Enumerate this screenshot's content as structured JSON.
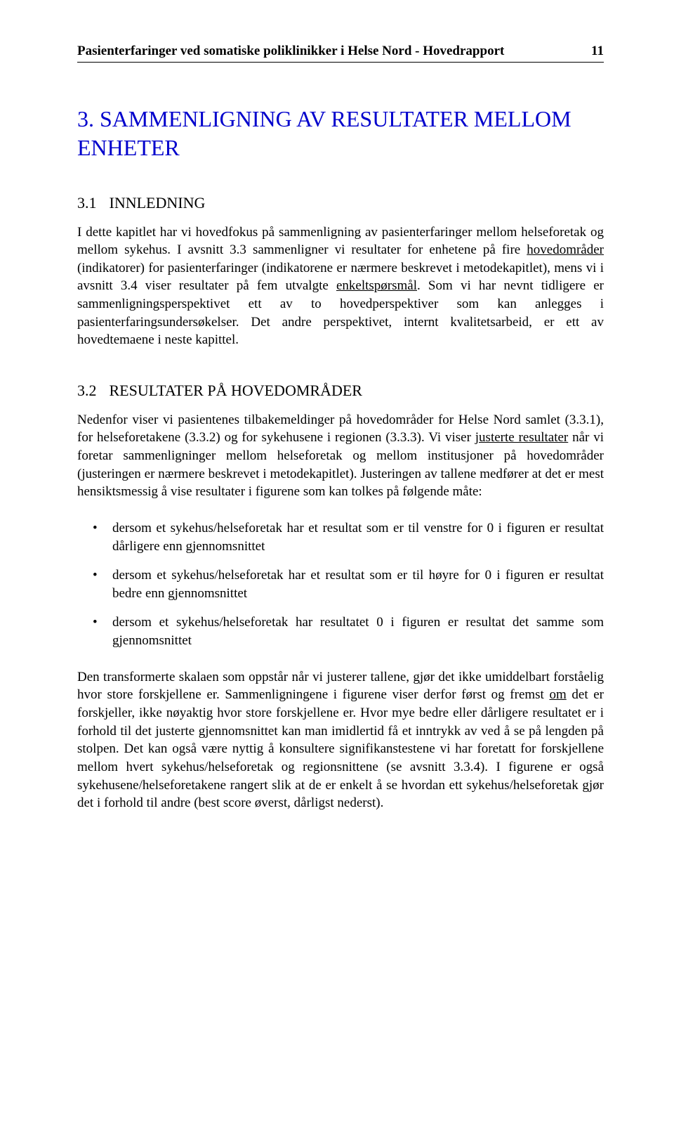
{
  "header": {
    "title": "Pasienterfaringer ved somatiske poliklinikker i Helse Nord - Hovedrapport",
    "page_number": "11"
  },
  "title": "3.   SAMMENLIGNING AV RESULTATER MELLOM ENHETER",
  "section31": {
    "heading_num": "3.1",
    "heading_text": "INNLEDNING",
    "p1_a": "I dette kapitlet har vi hovedfokus på sammenligning av pasienterfaringer mellom helseforetak og mellom sykehus. I avsnitt 3.3 sammenligner vi resultater for enhetene på fire ",
    "p1_u1": "hovedområder",
    "p1_b": " (indikatorer) for pasienterfaringer (indikatorene er nærmere beskrevet i metodekapitlet), mens vi i avsnitt 3.4 viser resultater på fem utvalgte ",
    "p1_u2": "enkeltspørsmål",
    "p1_c": ". Som vi har nevnt tidligere er sammenligningsperspektivet ett av to hovedperspektiver som kan anlegges i pasienterfaringsundersøkelser. Det andre perspektivet, internt kvalitetsarbeid, er ett av hovedtemaene i neste kapittel."
  },
  "section32": {
    "heading_num": "3.2",
    "heading_text": "RESULTATER PÅ HOVEDOMRÅDER",
    "p1_a": "Nedenfor viser vi pasientenes tilbakemeldinger på hovedområder for Helse Nord samlet (3.3.1), for helseforetakene (3.3.2) og for sykehusene i regionen (3.3.3). Vi viser ",
    "p1_u1": "justerte resultater",
    "p1_b": " når vi foretar sammenligninger mellom helseforetak og mellom institusjoner på hovedområder (justeringen er nærmere beskrevet i metodekapitlet). Justeringen av tallene medfører at det er mest hensiktsmessig å vise resultater i figurene som kan tolkes på følgende måte:",
    "bullets": [
      "dersom et sykehus/helseforetak har et resultat som er til venstre for 0 i figuren er resultat dårligere enn gjennomsnittet",
      "dersom et sykehus/helseforetak har et resultat som er til høyre for 0 i figuren er resultat bedre enn gjennomsnittet",
      "dersom et sykehus/helseforetak har resultatet 0 i figuren er resultat det samme som gjennomsnittet"
    ],
    "p2_a": "Den transformerte skalaen som oppstår når vi justerer tallene, gjør det ikke umiddelbart forståelig hvor store forskjellene er. Sammenligningene i figurene viser derfor først og fremst ",
    "p2_u1": "om",
    "p2_b": " det er forskjeller, ikke nøyaktig hvor store forskjellene er. Hvor mye bedre eller dårligere resultatet er i forhold til det justerte gjennomsnittet kan man imidlertid få et inntrykk av ved å se på lengden på stolpen. Det kan også være nyttig å konsultere signifikanstestene vi har foretatt for forskjellene mellom hvert sykehus/helseforetak og regionsnittene (se avsnitt 3.3.4). I figurene er også sykehusene/helseforetakene rangert slik at de er enkelt å se hvordan ett sykehus/helseforetak gjør det i forhold til andre (best score øverst, dårligst nederst)."
  }
}
